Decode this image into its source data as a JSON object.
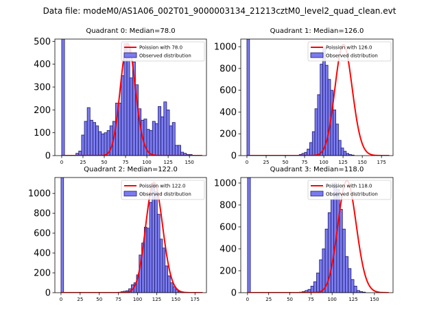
{
  "figure": {
    "suptitle": "Data file: modeM0/AS1A06_002T01_9000003134_21213cztM0_level2_quad_clean.evt"
  },
  "style": {
    "bar_fill": "#7b7bf0",
    "bar_edge": "#1a1a66",
    "curve_color": "#ff0000",
    "axis_color": "#000000"
  },
  "chart_data": [
    {
      "type": "bar",
      "title": "Quadrant 0: Median=78.0",
      "bin_start": 0,
      "bin_width": 3.33,
      "values": [
        515,
        0,
        0,
        0,
        0,
        10,
        20,
        90,
        150,
        210,
        155,
        145,
        130,
        105,
        95,
        100,
        110,
        130,
        150,
        230,
        230,
        350,
        490,
        480,
        340,
        410,
        310,
        205,
        155,
        160,
        115,
        110,
        150,
        140,
        215,
        170,
        235,
        200,
        130,
        145,
        45,
        45,
        15,
        10,
        5,
        5
      ],
      "poisson_label": "Poission with 78.0",
      "poisson_mean": 78.0,
      "poisson_scale": 490,
      "xlim": [
        -8,
        170
      ],
      "ylim": [
        0,
        510
      ],
      "xticks": [
        0,
        25,
        50,
        75,
        100,
        125,
        150
      ],
      "yticks": [
        0,
        100,
        200,
        300,
        400,
        500
      ],
      "legend": [
        "Poission with 78.0",
        "Observed distribution"
      ]
    },
    {
      "type": "bar",
      "title": "Quadrant 1: Median=126.0",
      "bin_start": 0,
      "bin_width": 3.4,
      "values": [
        1070,
        0,
        0,
        0,
        0,
        0,
        0,
        0,
        0,
        0,
        0,
        0,
        0,
        0,
        0,
        0,
        0,
        0,
        0,
        0,
        10,
        20,
        30,
        60,
        120,
        220,
        430,
        560,
        840,
        990,
        830,
        700,
        600,
        420,
        290,
        140,
        70,
        40,
        20,
        10,
        5
      ],
      "poisson_label": "Poission with 126.0",
      "poisson_mean": 126.0,
      "poisson_scale": 1020,
      "xlim": [
        -8,
        190
      ],
      "ylim": [
        0,
        1070
      ],
      "xticks": [
        0,
        25,
        50,
        75,
        100,
        125,
        150,
        175
      ],
      "yticks": [
        0,
        200,
        400,
        600,
        800,
        1000
      ],
      "legend": [
        "Poission with 126.0",
        "Observed distribution"
      ]
    },
    {
      "type": "bar",
      "title": "Quadrant 2: Median=122.0",
      "bin_start": 0,
      "bin_width": 3.4,
      "values": [
        1170,
        0,
        0,
        0,
        0,
        0,
        0,
        0,
        0,
        0,
        0,
        0,
        0,
        0,
        0,
        0,
        0,
        0,
        0,
        0,
        0,
        0,
        5,
        10,
        15,
        20,
        40,
        80,
        100,
        180,
        380,
        500,
        660,
        650,
        910,
        1100,
        1020,
        790,
        540,
        450,
        270,
        170,
        100,
        60,
        30,
        10
      ],
      "poisson_label": "Poission with 122.0",
      "poisson_mean": 122.0,
      "poisson_scale": 1110,
      "xlim": [
        -8,
        190
      ],
      "ylim": [
        0,
        1160
      ],
      "xticks": [
        0,
        25,
        50,
        75,
        100,
        125,
        150,
        175
      ],
      "yticks": [
        0,
        200,
        400,
        600,
        800,
        1000
      ],
      "legend": [
        "Poission with 122.0",
        "Observed distribution"
      ]
    },
    {
      "type": "bar",
      "title": "Quadrant 3: Median=118.0",
      "bin_start": 0,
      "bin_width": 3.4,
      "values": [
        1050,
        0,
        0,
        0,
        0,
        0,
        0,
        0,
        0,
        0,
        0,
        0,
        0,
        0,
        0,
        0,
        0,
        0,
        5,
        10,
        20,
        30,
        60,
        100,
        180,
        300,
        400,
        580,
        730,
        850,
        1000,
        940,
        760,
        580,
        330,
        220,
        120,
        60,
        20,
        10,
        5
      ],
      "poisson_label": "Poission with 118.0",
      "poisson_mean": 118.0,
      "poisson_scale": 1020,
      "xlim": [
        -8,
        172
      ],
      "ylim": [
        0,
        1050
      ],
      "xticks": [
        0,
        25,
        50,
        75,
        100,
        125,
        150
      ],
      "yticks": [
        0,
        200,
        400,
        600,
        800,
        1000
      ],
      "legend": [
        "Poission with 118.0",
        "Observed distribution"
      ]
    }
  ]
}
